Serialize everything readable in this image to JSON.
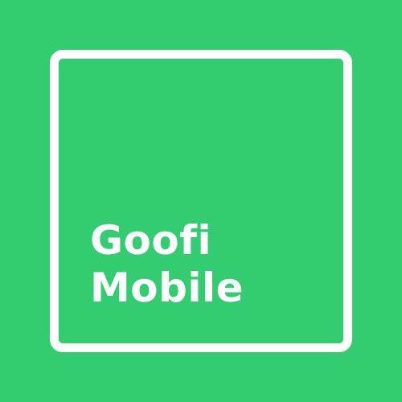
{
  "logo": {
    "line1": "Goofi",
    "line2": "Mobile"
  },
  "colors": {
    "background": "#33cc71",
    "foreground": "#ffffff"
  }
}
